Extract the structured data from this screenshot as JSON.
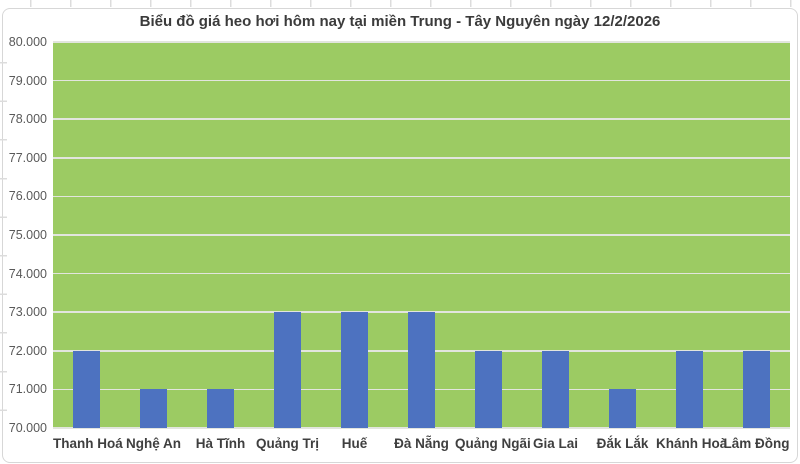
{
  "chart_data": {
    "type": "bar",
    "title": "Biểu đồ giá heo hơi hôm nay tại miền Trung - Tây Nguyên ngày 12/2/2026",
    "categories": [
      "Thanh Hoá",
      "Nghệ An",
      "Hà Tĩnh",
      "Quảng Trị",
      "Huế",
      "Đà Nẵng",
      "Quảng Ngãi",
      "Gia Lai",
      "Đắk Lắk",
      "Khánh Hoà",
      "Lâm Đồng"
    ],
    "values": [
      72000,
      71000,
      71000,
      73000,
      73000,
      73000,
      72000,
      72000,
      71000,
      72000,
      72000
    ],
    "xlabel": "",
    "ylabel": "",
    "ylim": [
      70000,
      80000
    ],
    "ytick_step": 1000,
    "ytick_labels": [
      "80.000",
      "79.000",
      "78.000",
      "77.000",
      "76.000",
      "75.000",
      "74.000",
      "73.000",
      "72.000",
      "71.000",
      "70.000"
    ],
    "grid": true,
    "legend": "none",
    "colors": {
      "bar": "#4d72c0",
      "plot_bg": "#9ccb63",
      "gridline": "#e2e5de",
      "frame_border": "#d7d7d7"
    }
  }
}
